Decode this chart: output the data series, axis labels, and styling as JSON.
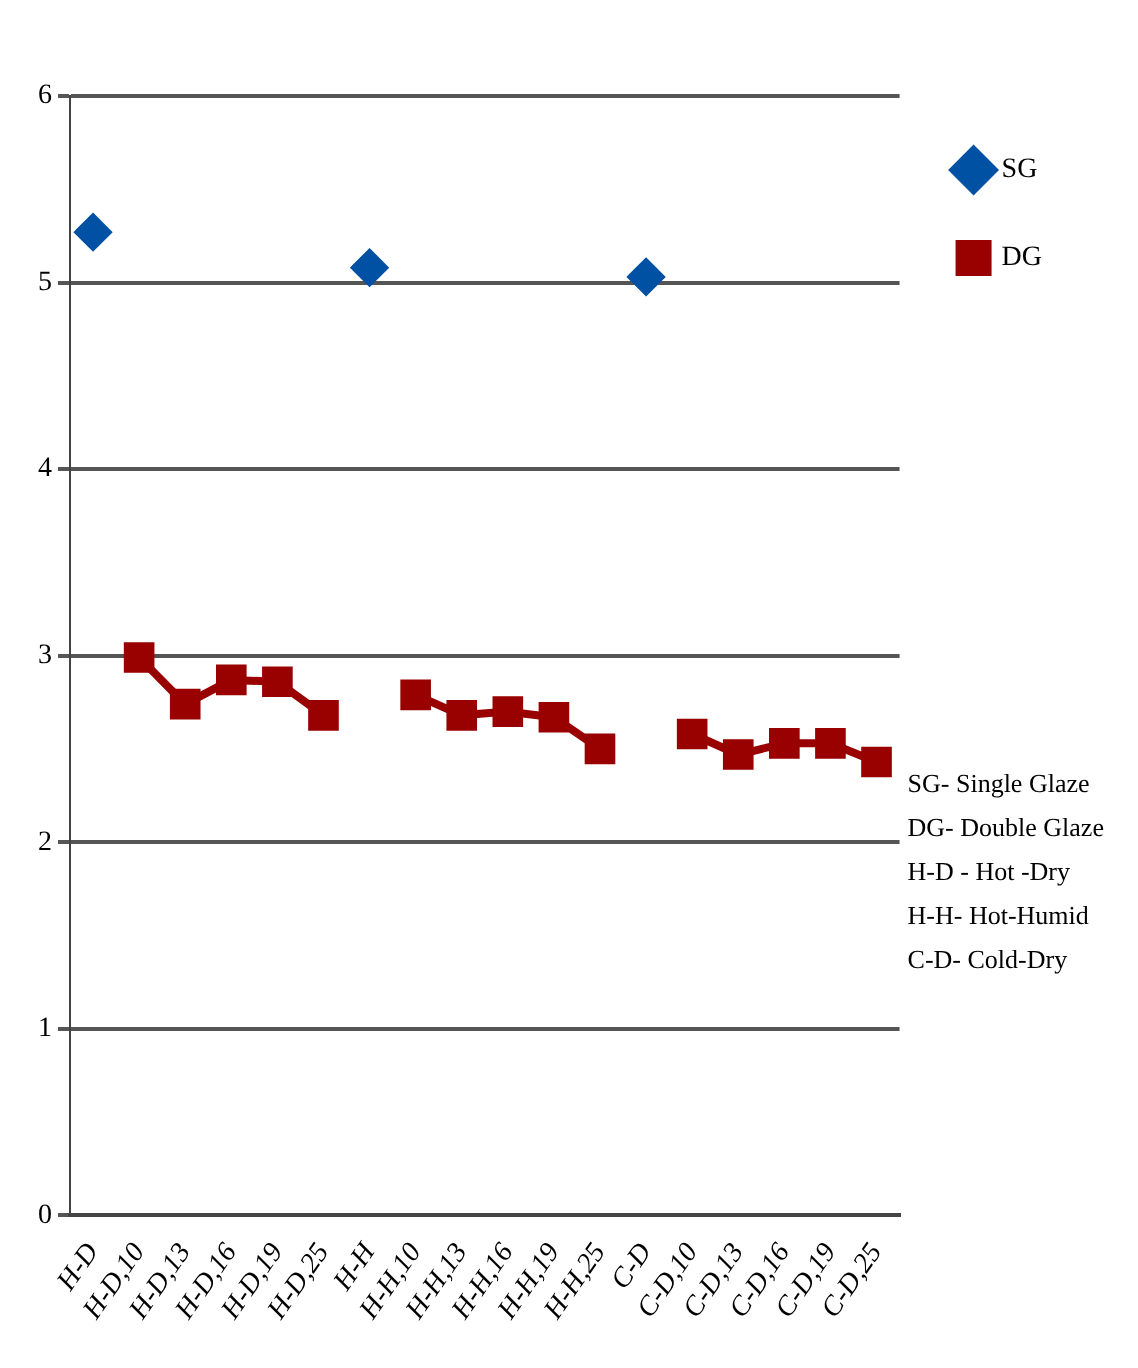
{
  "chart_data": {
    "type": "line",
    "categories": [
      "H-D",
      "H-D,10",
      "H-D,13",
      "H-D,16",
      "H-D,19",
      "H-D,25",
      "H-H",
      "H-H,10",
      "H-H,13",
      "H-H,16",
      "H-H,19",
      "H-H,25",
      "C-D",
      "C-D,10",
      "C-D,13",
      "C-D,16",
      "C-D,19",
      "C-D,25"
    ],
    "series": [
      {
        "name": "SG",
        "type": "scatter",
        "color": "#0050a4",
        "marker": "diamond",
        "values": [
          5.27,
          null,
          null,
          null,
          null,
          null,
          5.08,
          null,
          null,
          null,
          null,
          null,
          5.03,
          null,
          null,
          null,
          null,
          null
        ]
      },
      {
        "name": "DG",
        "color": "#990000",
        "marker": "square",
        "values": [
          null,
          2.99,
          2.74,
          2.87,
          2.86,
          2.68,
          null,
          2.79,
          2.68,
          2.7,
          2.67,
          2.5,
          null,
          2.58,
          2.47,
          2.53,
          2.53,
          2.43
        ]
      }
    ],
    "ylim": [
      0,
      6
    ],
    "yticks": [
      0,
      1,
      2,
      3,
      4,
      5,
      6
    ],
    "grid": "y",
    "legend": "top right",
    "line_style": "solid",
    "annotations": [
      "SG- Single Glaze",
      "DG- Double Glaze",
      "H-D - Hot -Dry",
      "H-H- Hot-Humid",
      "C-D- Cold-Dry"
    ]
  }
}
